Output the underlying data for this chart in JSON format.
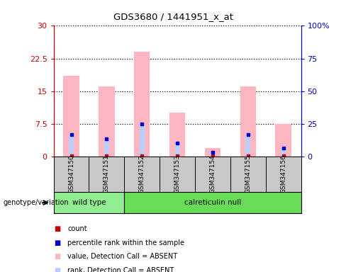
{
  "title": "GDS3680 / 1441951_x_at",
  "samples": [
    "GSM347150",
    "GSM347151",
    "GSM347152",
    "GSM347153",
    "GSM347154",
    "GSM347155",
    "GSM347156"
  ],
  "pink_bars": [
    18.5,
    16.0,
    24.0,
    10.0,
    2.0,
    16.0,
    7.5
  ],
  "blue_bars": [
    5.0,
    4.0,
    7.5,
    3.0,
    1.0,
    5.0,
    2.0
  ],
  "red_vals": [
    0.2,
    0.2,
    0.2,
    0.2,
    0.2,
    0.2,
    0.2
  ],
  "blue_dot_vals": [
    5.0,
    4.0,
    7.5,
    3.0,
    1.0,
    5.0,
    2.0
  ],
  "ylim_left": [
    0,
    30
  ],
  "ylim_right": [
    0,
    100
  ],
  "yticks_left": [
    0,
    7.5,
    15,
    22.5,
    30
  ],
  "ytick_labels_left": [
    "0",
    "7.5",
    "15",
    "22.5",
    "30"
  ],
  "yticks_right": [
    0,
    25,
    50,
    75,
    100
  ],
  "ytick_labels_right": [
    "0",
    "25",
    "50",
    "75",
    "100%"
  ],
  "groups": [
    {
      "label": "wild type",
      "start": 0,
      "end": 2,
      "color": "#90EE90"
    },
    {
      "label": "calreticulin null",
      "start": 2,
      "end": 7,
      "color": "#66DD55"
    }
  ],
  "genotype_label": "genotype/variation",
  "legend_items": [
    {
      "color": "#CC0000",
      "label": "count"
    },
    {
      "color": "#0000CC",
      "label": "percentile rank within the sample"
    },
    {
      "color": "#FFB6C1",
      "label": "value, Detection Call = ABSENT"
    },
    {
      "color": "#BBCCFF",
      "label": "rank, Detection Call = ABSENT"
    }
  ],
  "bar_width": 0.45,
  "pink_color": "#FFB6C1",
  "blue_bar_color": "#BBCCFF",
  "red_color": "#CC0000",
  "dark_blue_color": "#0000CC",
  "left_axis_color": "#CC0000",
  "right_axis_color": "#0000CC",
  "sample_bg_color": "#C8C8C8"
}
